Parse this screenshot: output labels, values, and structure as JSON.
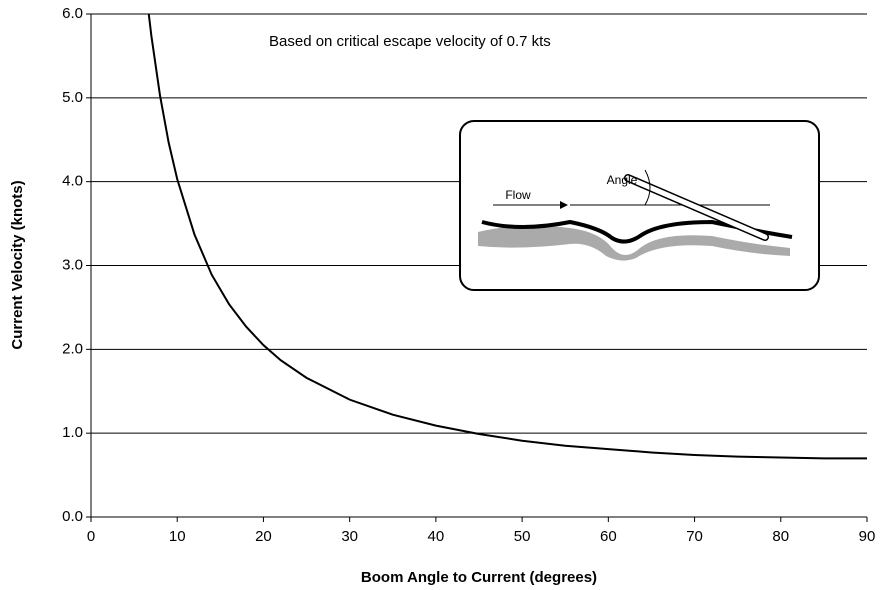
{
  "chart_data": {
    "type": "line",
    "x_label": "Boom Angle to Current (degrees)",
    "y_label": "Current Velocity (knots)",
    "annotation": "Based on critical escape velocity of 0.7 kts",
    "inset_labels": {
      "flow": "Flow",
      "angle": "Angle"
    },
    "xlim": [
      0,
      90
    ],
    "xticks": [
      0,
      10,
      20,
      30,
      40,
      50,
      60,
      70,
      80,
      90
    ],
    "ylim": [
      0,
      6
    ],
    "yticks": [
      {
        "value": 0,
        "label": "0.0"
      },
      {
        "value": 1,
        "label": "1.0"
      },
      {
        "value": 2,
        "label": "2.0"
      },
      {
        "value": 3,
        "label": "3.0"
      },
      {
        "value": 4,
        "label": "4.0"
      },
      {
        "value": 5,
        "label": "5.0"
      },
      {
        "value": 6,
        "label": "6.0"
      }
    ],
    "grid": true,
    "x": [
      6.7,
      7,
      8,
      9,
      10,
      12,
      14,
      16,
      18,
      20,
      22,
      25,
      30,
      35,
      40,
      45,
      50,
      55,
      60,
      65,
      70,
      75,
      80,
      85,
      90
    ],
    "series": [
      {
        "color": "#000000",
        "values": [
          6.0,
          5.74,
          5.03,
          4.47,
          4.03,
          3.37,
          2.89,
          2.54,
          2.27,
          2.05,
          1.87,
          1.66,
          1.4,
          1.22,
          1.09,
          0.99,
          0.91,
          0.85,
          0.81,
          0.77,
          0.74,
          0.72,
          0.71,
          0.7,
          0.7
        ]
      }
    ]
  }
}
